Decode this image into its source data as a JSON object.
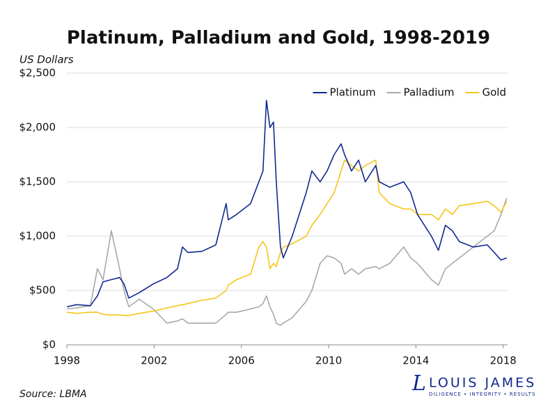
{
  "chart_data": {
    "type": "line",
    "title": "Platinum, Palladium and Gold, 1998-2019",
    "y_label": "US Dollars",
    "source": "Source: LBMA",
    "logo": {
      "mark": "L",
      "name": "LOUIS JAMES",
      "tagline": "DILIGENCE • INTEGRITY • RESULTS"
    },
    "legend": "upper right",
    "grid": true,
    "xlim": [
      1998,
      2018.2
    ],
    "xticks": [
      1998,
      2002,
      2006,
      2010,
      2014,
      2018
    ],
    "ylim": [
      0,
      2500
    ],
    "yticks": [
      {
        "value": 0,
        "label": "$0"
      },
      {
        "value": 500,
        "label": "$500"
      },
      {
        "value": 1000,
        "label": "$1,000"
      },
      {
        "value": 1500,
        "label": "$1,500"
      },
      {
        "value": 2000,
        "label": "$2,000"
      },
      {
        "value": 2500,
        "label": "$2,500"
      }
    ],
    "x": [
      1998,
      1998.45,
      1999.08,
      1999.4,
      1999.66,
      2000.04,
      2000.42,
      2000.62,
      2000.84,
      2001.32,
      2001.96,
      2002.59,
      2003.07,
      2003.3,
      2003.55,
      2004.19,
      2004.83,
      2005.3,
      2005.4,
      2005.78,
      2006.42,
      2006.8,
      2006.99,
      2007.15,
      2007.31,
      2007.47,
      2007.6,
      2007.79,
      2007.92,
      2008.33,
      2008.97,
      2009.23,
      2009.61,
      2009.93,
      2010.25,
      2010.57,
      2010.73,
      2011.05,
      2011.37,
      2011.68,
      2012.16,
      2012.32,
      2012.8,
      2013.44,
      2013.76,
      2014.07,
      2014.71,
      2015.03,
      2015.35,
      2015.67,
      2015.99,
      2016.63,
      2017.27,
      2017.59,
      2017.9,
      2018.16
    ],
    "series": [
      {
        "name": "Platinum",
        "color": "#10288f",
        "values": [
          350,
          370,
          360,
          450,
          580,
          600,
          620,
          560,
          430,
          480,
          560,
          620,
          700,
          900,
          850,
          860,
          920,
          1300,
          1150,
          1200,
          1300,
          1500,
          1600,
          2250,
          2000,
          2050,
          1500,
          900,
          800,
          1000,
          1400,
          1600,
          1500,
          1600,
          1750,
          1850,
          1750,
          1600,
          1700,
          1500,
          1650,
          1500,
          1450,
          1500,
          1400,
          1200,
          1000,
          870,
          1100,
          1050,
          950,
          900,
          920,
          850,
          780,
          800
        ]
      },
      {
        "name": "Palladium",
        "color": "#a8a8a8",
        "values": [
          330,
          340,
          360,
          700,
          600,
          1050,
          700,
          500,
          350,
          420,
          330,
          200,
          220,
          240,
          200,
          200,
          200,
          280,
          300,
          300,
          330,
          350,
          380,
          450,
          350,
          280,
          200,
          180,
          200,
          250,
          400,
          500,
          750,
          820,
          800,
          750,
          650,
          700,
          650,
          700,
          720,
          700,
          750,
          900,
          800,
          750,
          600,
          550,
          700,
          750,
          800,
          900,
          1000,
          1050,
          1200,
          1350
        ]
      },
      {
        "name": "Gold",
        "color": "#f5c518",
        "values": [
          300,
          290,
          300,
          300,
          280,
          275,
          275,
          270,
          270,
          290,
          310,
          340,
          360,
          370,
          380,
          410,
          430,
          500,
          550,
          600,
          650,
          900,
          950,
          900,
          700,
          750,
          720,
          850,
          900,
          930,
          1000,
          1100,
          1200,
          1300,
          1400,
          1600,
          1700,
          1650,
          1600,
          1650,
          1700,
          1400,
          1300,
          1250,
          1250,
          1200,
          1200,
          1150,
          1250,
          1200,
          1280,
          1300,
          1320,
          1280,
          1220,
          1320
        ]
      }
    ]
  }
}
